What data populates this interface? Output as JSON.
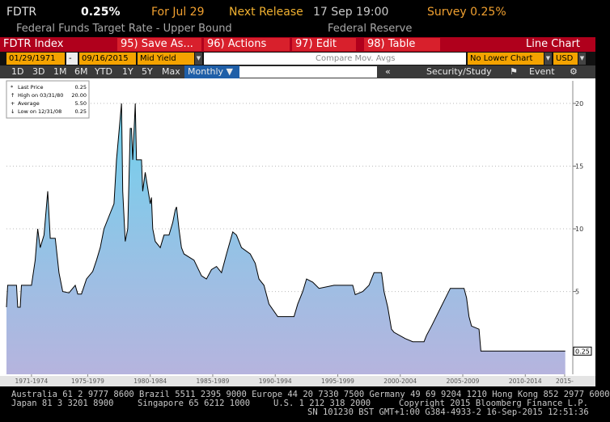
{
  "header": {
    "ticker": "FDTR",
    "price": "0.25%",
    "for": "For Jul 29",
    "next_release_label": "Next Release",
    "next_release": "17 Sep 19:00",
    "survey": "Survey 0.25%",
    "description": "Federal Funds Target Rate - Upper Bound",
    "source": "Federal Reserve"
  },
  "toolbar": {
    "security": "FDTR Index",
    "buttons": [
      "95) Save As...",
      "96) Actions",
      "97) Edit",
      "98) Table"
    ],
    "chart_type": "Line Chart"
  },
  "settings": {
    "start": "01/29/1971",
    "separator": "-",
    "end": "09/16/2015",
    "field": "Mid Yield",
    "compare": "Compare Mov. Avgs",
    "lower": "No Lower Chart",
    "currency": "USD"
  },
  "ranges": {
    "buttons": [
      "1D",
      "3D",
      "1M",
      "6M",
      "YTD",
      "1Y",
      "5Y",
      "Max"
    ],
    "period": "Monthly",
    "collapse": "«",
    "study": "Security/Study",
    "event": "Event"
  },
  "chart_data": {
    "type": "line",
    "x": [
      1971.0,
      1971.1,
      1971.8,
      1971.9,
      1972.1,
      1972.2,
      1973.0,
      1973.3,
      1973.5,
      1973.7,
      1974.0,
      1974.3,
      1974.5,
      1974.9,
      1975.2,
      1975.5,
      1976.0,
      1976.5,
      1976.7,
      1977.0,
      1977.4,
      1977.9,
      1978.2,
      1978.5,
      1978.8,
      1979.2,
      1979.6,
      1979.8,
      1980.2,
      1980.3,
      1980.5,
      1980.7,
      1980.9,
      1981.0,
      1981.1,
      1981.3,
      1981.4,
      1981.8,
      1981.9,
      1982.1,
      1982.5,
      1982.6,
      1982.7,
      1982.9,
      1983.3,
      1983.6,
      1984.0,
      1984.3,
      1984.5,
      1984.6,
      1984.8,
      1985.0,
      1985.2,
      1986.0,
      1986.6,
      1987.0,
      1987.4,
      1987.8,
      1988.2,
      1988.6,
      1989.1,
      1989.4,
      1989.8,
      1990.5,
      1990.9,
      1991.2,
      1991.6,
      1992.0,
      1992.7,
      1994.0,
      1994.3,
      1994.7,
      1995.0,
      1995.5,
      1996.0,
      1997.2,
      1998.7,
      1998.9,
      1999.5,
      2000.0,
      2000.4,
      2001.0,
      2001.2,
      2001.5,
      2001.8,
      2002.0,
      2002.9,
      2003.5,
      2004.4,
      2004.6,
      2005.0,
      2005.5,
      2006.0,
      2006.5,
      2007.6,
      2007.8,
      2008.0,
      2008.2,
      2008.8,
      2008.95,
      2015.7
    ],
    "series": [
      {
        "name": "Last Price",
        "color": "#000000",
        "values": [
          3.75,
          5.5,
          5.5,
          3.75,
          3.75,
          5.5,
          5.5,
          7.5,
          10,
          8.5,
          9.5,
          13,
          9.25,
          9.25,
          6.5,
          5.0,
          4.9,
          5.5,
          4.8,
          4.8,
          6.0,
          6.6,
          7.5,
          8.5,
          10,
          11,
          12,
          15.5,
          20,
          13,
          9,
          10,
          18,
          18,
          15.5,
          20,
          15.5,
          15.5,
          13,
          14.5,
          12,
          12.5,
          10,
          9,
          8.5,
          9.5,
          9.5,
          10.5,
          11.5,
          11.75,
          10,
          8.5,
          8,
          7.5,
          6.25,
          6,
          6.75,
          7,
          6.5,
          8,
          9.75,
          9.5,
          8.5,
          8,
          7.25,
          6,
          5.5,
          4,
          3,
          3,
          4,
          5,
          6,
          5.75,
          5.25,
          5.5,
          5.5,
          4.75,
          5,
          5.5,
          6.5,
          6.5,
          5,
          3.75,
          2,
          1.75,
          1.25,
          1,
          1,
          1.5,
          2.25,
          3.25,
          4.25,
          5.25,
          5.25,
          4.5,
          3,
          2.25,
          2,
          0.25,
          0.25
        ]
      }
    ],
    "xlim": [
      1971,
      2016.3
    ],
    "ylim": [
      -1.6,
      21.8
    ],
    "xticks": [
      {
        "value": 1973,
        "label": "1971-1974"
      },
      {
        "value": 1977.5,
        "label": "1975-1979"
      },
      {
        "value": 1982.5,
        "label": "1980-1984"
      },
      {
        "value": 1987.5,
        "label": "1985-1989"
      },
      {
        "value": 1992.5,
        "label": "1990-1994"
      },
      {
        "value": 1997.5,
        "label": "1995-1999"
      },
      {
        "value": 2002.5,
        "label": "2000-2004"
      },
      {
        "value": 2007.5,
        "label": "2005-2009"
      },
      {
        "value": 2012.5,
        "label": "2010-2014"
      },
      {
        "value": 2015.65,
        "label": "2015-"
      }
    ],
    "yticks": [
      5,
      10,
      15,
      20
    ],
    "grid": true,
    "last_label": "0.25",
    "last_price": "0.25",
    "stats": [
      {
        "label": "High on 03/31/80",
        "value": "20.00"
      },
      {
        "label": "Average",
        "value": "5.50"
      },
      {
        "label": "Low on 12/31/08",
        "value": "0.25"
      }
    ]
  },
  "footer": {
    "lines": [
      "Australia 61 2 9777 8600 Brazil 5511 2395 9000 Europe 44 20 7330 7500 Germany 49 69 9204 1210 Hong Kong 852 2977 6000",
      "Japan 81 3 3201 8900",
      "Singapore 65 6212 1000",
      "U.S. 1 212 318 2000",
      "Copyright 2015 Bloomberg Finance L.P.",
      "SN 101230 BST  GMT+1:00 G384-4933-2 16-Sep-2015 12:51:36"
    ]
  }
}
